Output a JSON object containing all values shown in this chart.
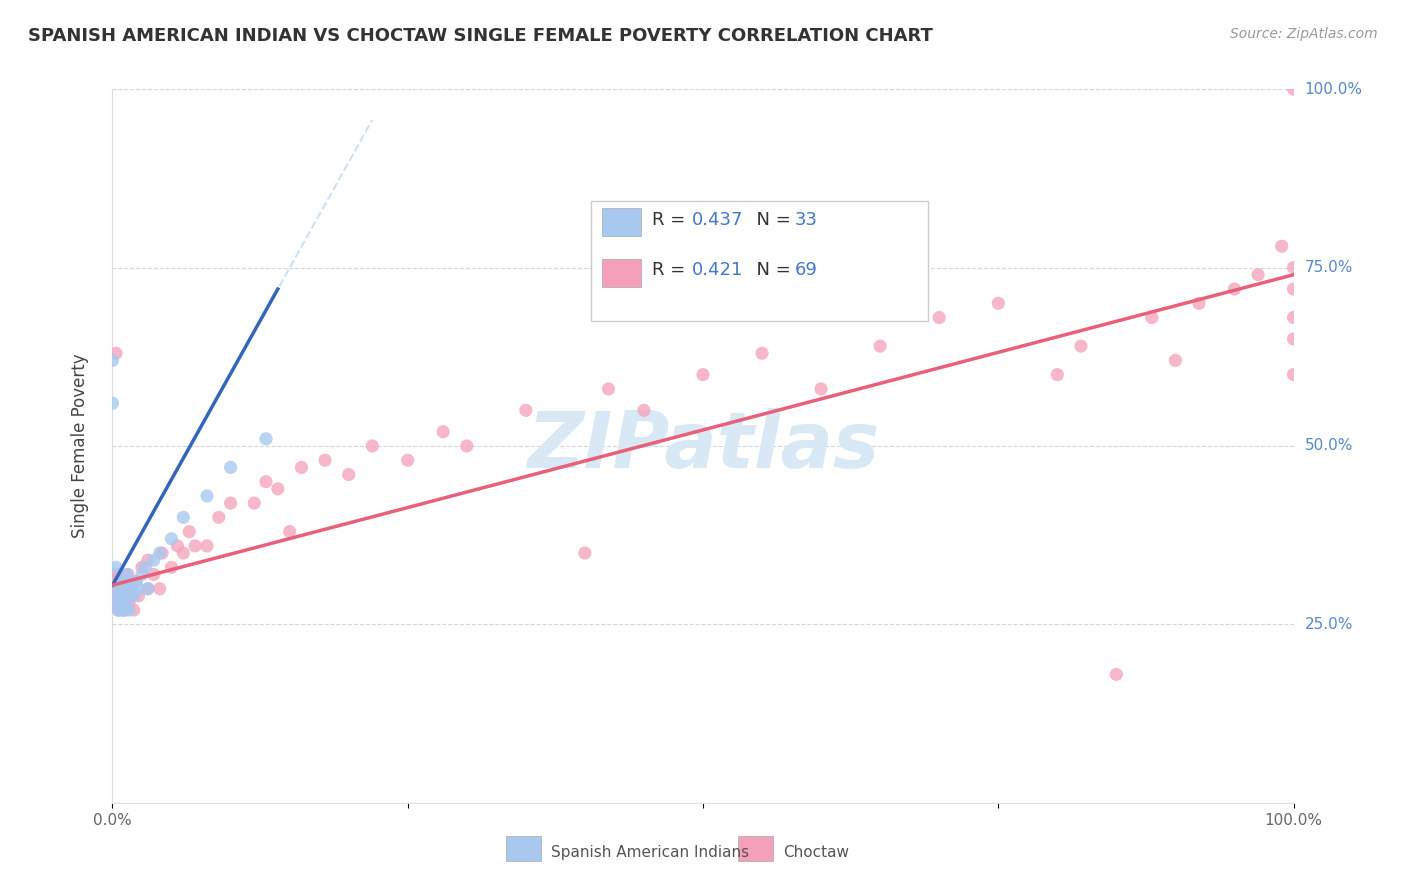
{
  "title": "SPANISH AMERICAN INDIAN VS CHOCTAW SINGLE FEMALE POVERTY CORRELATION CHART",
  "source": "Source: ZipAtlas.com",
  "ylabel": "Single Female Poverty",
  "r_blue": 0.437,
  "n_blue": 33,
  "r_pink": 0.421,
  "n_pink": 69,
  "blue_color": "#A8C8F0",
  "pink_color": "#F4A0B8",
  "blue_line_color": "#3366BB",
  "pink_line_color": "#E8607A",
  "blue_line_dashed_color": "#AACCEE",
  "watermark_color": "#D8E8F4",
  "xlim": [
    0.0,
    1.0
  ],
  "ylim": [
    0.0,
    1.0
  ],
  "xticks": [
    0.0,
    0.25,
    0.5,
    0.75,
    1.0
  ],
  "xticklabels": [
    "0.0%",
    "",
    "",
    "",
    "100.0%"
  ],
  "yticks_right": [
    0.25,
    0.5,
    0.75,
    1.0
  ],
  "yticklabels_right": [
    "25.0%",
    "50.0%",
    "75.0%",
    "100.0%"
  ],
  "legend_label_blue": "Spanish American Indians",
  "legend_label_pink": "Choctaw",
  "blue_scatter_x": [
    0.0,
    0.0,
    0.002,
    0.003,
    0.003,
    0.005,
    0.005,
    0.006,
    0.007,
    0.008,
    0.008,
    0.009,
    0.01,
    0.01,
    0.011,
    0.012,
    0.013,
    0.014,
    0.015,
    0.016,
    0.018,
    0.02,
    0.022,
    0.025,
    0.028,
    0.03,
    0.035,
    0.04,
    0.05,
    0.06,
    0.08,
    0.1,
    0.13
  ],
  "blue_scatter_y": [
    0.62,
    0.56,
    0.28,
    0.3,
    0.33,
    0.27,
    0.29,
    0.31,
    0.28,
    0.27,
    0.29,
    0.31,
    0.27,
    0.3,
    0.28,
    0.32,
    0.29,
    0.27,
    0.31,
    0.3,
    0.29,
    0.31,
    0.3,
    0.32,
    0.33,
    0.3,
    0.34,
    0.35,
    0.37,
    0.4,
    0.43,
    0.47,
    0.51
  ],
  "pink_scatter_x": [
    0.0,
    0.0,
    0.0,
    0.003,
    0.005,
    0.005,
    0.007,
    0.008,
    0.009,
    0.01,
    0.01,
    0.012,
    0.013,
    0.014,
    0.015,
    0.016,
    0.018,
    0.02,
    0.022,
    0.025,
    0.03,
    0.03,
    0.035,
    0.04,
    0.042,
    0.05,
    0.055,
    0.06,
    0.065,
    0.07,
    0.08,
    0.09,
    0.1,
    0.12,
    0.13,
    0.14,
    0.15,
    0.16,
    0.18,
    0.2,
    0.22,
    0.25,
    0.28,
    0.3,
    0.35,
    0.4,
    0.42,
    0.45,
    0.5,
    0.55,
    0.6,
    0.65,
    0.7,
    0.75,
    0.8,
    0.82,
    0.85,
    0.88,
    0.9,
    0.92,
    0.95,
    0.97,
    0.99,
    1.0,
    1.0,
    1.0,
    1.0,
    1.0,
    1.0
  ],
  "pink_scatter_y": [
    0.28,
    0.3,
    0.32,
    0.63,
    0.27,
    0.32,
    0.29,
    0.3,
    0.28,
    0.27,
    0.31,
    0.3,
    0.32,
    0.28,
    0.3,
    0.29,
    0.27,
    0.31,
    0.29,
    0.33,
    0.3,
    0.34,
    0.32,
    0.3,
    0.35,
    0.33,
    0.36,
    0.35,
    0.38,
    0.36,
    0.36,
    0.4,
    0.42,
    0.42,
    0.45,
    0.44,
    0.38,
    0.47,
    0.48,
    0.46,
    0.5,
    0.48,
    0.52,
    0.5,
    0.55,
    0.35,
    0.58,
    0.55,
    0.6,
    0.63,
    0.58,
    0.64,
    0.68,
    0.7,
    0.6,
    0.64,
    0.18,
    0.68,
    0.62,
    0.7,
    0.72,
    0.74,
    0.78,
    1.0,
    0.75,
    0.72,
    0.68,
    0.65,
    0.6
  ],
  "blue_trend_x": [
    0.0,
    0.14
  ],
  "blue_trend_y": [
    0.305,
    0.72
  ],
  "pink_trend_x": [
    0.0,
    1.0
  ],
  "pink_trend_y_start": 0.305,
  "pink_trend_y_end": 0.74
}
